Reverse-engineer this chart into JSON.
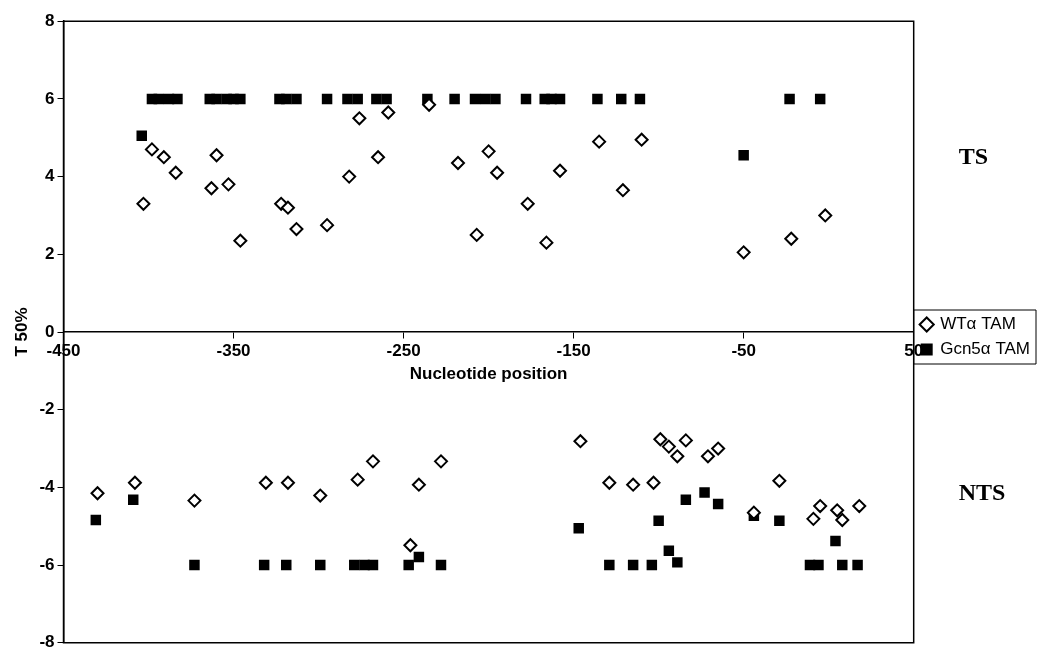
{
  "chart_data": {
    "type": "scatter",
    "xlabel": "Nucleotide position",
    "ylabel": "T 50%",
    "xlim": [
      -450,
      50
    ],
    "xticks": [
      -450,
      -350,
      -250,
      -150,
      -50,
      50
    ],
    "ylim": [
      -8,
      8
    ],
    "yticks": [
      -8,
      -6,
      -4,
      -2,
      0,
      2,
      4,
      6,
      8
    ],
    "grid": false,
    "legend": "right",
    "annotations": [
      "TS",
      "NTS"
    ],
    "series": [
      {
        "name": "WTα TAM",
        "color": "#000000",
        "marker": "diamond",
        "x": [
          -403,
          -398,
          -391,
          -384,
          -363,
          -360,
          -353,
          -346,
          -322,
          -318,
          -313,
          -295,
          -282,
          -276,
          -265,
          -259,
          -235,
          -218,
          -207,
          -200,
          -195,
          -177,
          -166,
          -158,
          -135,
          -121,
          -110,
          -50,
          -22,
          -2,
          -430,
          -408,
          -373,
          -331,
          -318,
          -299,
          -277,
          -268,
          -246,
          -241,
          -228,
          -146,
          -129,
          -115,
          -103,
          -99,
          -94,
          -89,
          -84,
          -71,
          -65,
          -44,
          -29,
          -9,
          -5,
          5,
          8,
          18
        ],
        "values": [
          3.3,
          4.7,
          4.5,
          4.1,
          3.7,
          4.55,
          3.8,
          2.35,
          3.3,
          3.2,
          2.65,
          2.75,
          4.0,
          5.5,
          4.5,
          5.65,
          5.85,
          4.35,
          2.5,
          4.65,
          4.1,
          3.3,
          2.3,
          4.15,
          4.9,
          3.65,
          4.95,
          2.05,
          2.4,
          3.0,
          -4.15,
          -3.88,
          -4.34,
          -3.88,
          -3.88,
          -4.21,
          -3.8,
          -3.33,
          -5.49,
          -3.93,
          -3.33,
          -2.81,
          -3.88,
          -3.93,
          -3.88,
          -2.76,
          -2.95,
          -3.2,
          -2.79,
          -3.2,
          -3.0,
          -4.65,
          -3.83,
          -4.81,
          -4.48,
          -4.59,
          -4.84,
          -4.48
        ]
      },
      {
        "name": "Gcn5α TAM",
        "color": "#000000",
        "marker": "square",
        "x": [
          -404,
          -398,
          -394,
          -388,
          -383,
          -364,
          -360,
          -354,
          -350,
          -346,
          -323,
          -319,
          -313,
          -295,
          -283,
          -277,
          -266,
          -260,
          -236,
          -220,
          -208,
          -202,
          -196,
          -178,
          -167,
          -163,
          -158,
          -136,
          -122,
          -111,
          -50,
          -23,
          -5,
          -431,
          -409,
          -373,
          -332,
          -319,
          -299,
          -279,
          -273,
          -268,
          -247,
          -241,
          -228,
          -147,
          -129,
          -115,
          -104,
          -100,
          -94,
          -89,
          -84,
          -73,
          -65,
          -44,
          -29,
          -11,
          -6,
          4,
          8,
          17
        ],
        "values": [
          5.05,
          6,
          6,
          6,
          6,
          6,
          6,
          6,
          6,
          6,
          6,
          6,
          6,
          6,
          6,
          6,
          6,
          6,
          6,
          6,
          6,
          6,
          6,
          6,
          6,
          6,
          6,
          6,
          6,
          6,
          4.55,
          6,
          6,
          -4.84,
          -4.32,
          -6,
          -6,
          -6,
          -6,
          -6,
          -6,
          -6,
          -6,
          -5.79,
          -6,
          -5.05,
          -6,
          -6,
          -6,
          -4.86,
          -5.63,
          -5.93,
          -4.32,
          -4.13,
          -4.43,
          -4.73,
          -4.86,
          -6,
          -6,
          -5.38,
          -6,
          -6
        ]
      }
    ]
  }
}
